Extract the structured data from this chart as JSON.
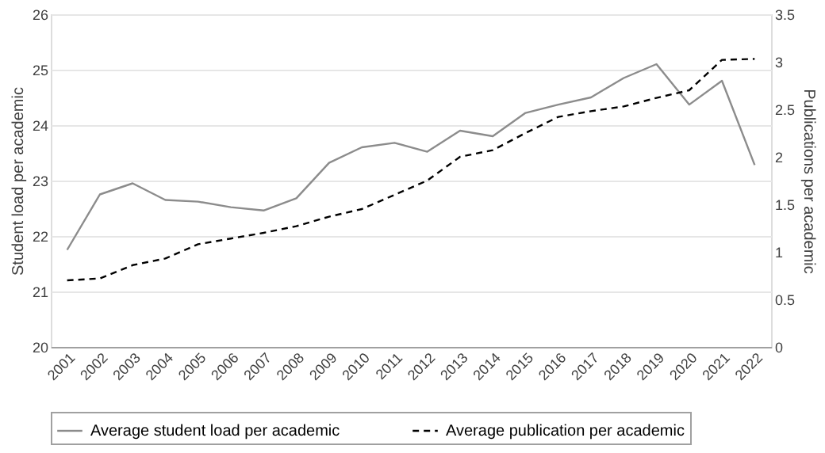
{
  "chart_data": {
    "type": "line",
    "categories": [
      "2001",
      "2002",
      "2003",
      "2004",
      "2005",
      "2006",
      "2007",
      "2008",
      "2009",
      "2010",
      "2011",
      "2012",
      "2013",
      "2014",
      "2015",
      "2016",
      "2017",
      "2018",
      "2019",
      "2020",
      "2021",
      "2022"
    ],
    "ylabel": "Student load per academic",
    "y2label": "Publications per academic",
    "ylim": [
      20,
      26
    ],
    "yticks": [
      20,
      21,
      22,
      23,
      24,
      25,
      26
    ],
    "y2lim": [
      0,
      3.5
    ],
    "y2ticks": [
      0,
      0.5,
      1,
      1.5,
      2,
      2.5,
      3,
      3.5
    ],
    "grid": "y",
    "legend": "bottom",
    "marker": "none",
    "series": [
      {
        "name": "Average student load  per academic",
        "color": "#8c8c8c",
        "line_style": "solid",
        "values": [
          21.75,
          22.75,
          22.95,
          22.65,
          22.62,
          22.52,
          22.46,
          22.68,
          23.32,
          23.6,
          23.68,
          23.52,
          23.9,
          23.8,
          24.22,
          24.37,
          24.5,
          24.85,
          25.1,
          24.37,
          24.8,
          23.28
        ]
      },
      {
        "name": "Average publication per academic",
        "color": "#000000",
        "line_style": "dashed",
        "axis": "y2",
        "values": [
          0.7,
          0.72,
          0.86,
          0.93,
          1.08,
          1.14,
          1.2,
          1.27,
          1.37,
          1.45,
          1.6,
          1.75,
          2.0,
          2.07,
          2.25,
          2.42,
          2.48,
          2.53,
          2.62,
          2.7,
          3.02,
          3.03
        ]
      }
    ]
  }
}
